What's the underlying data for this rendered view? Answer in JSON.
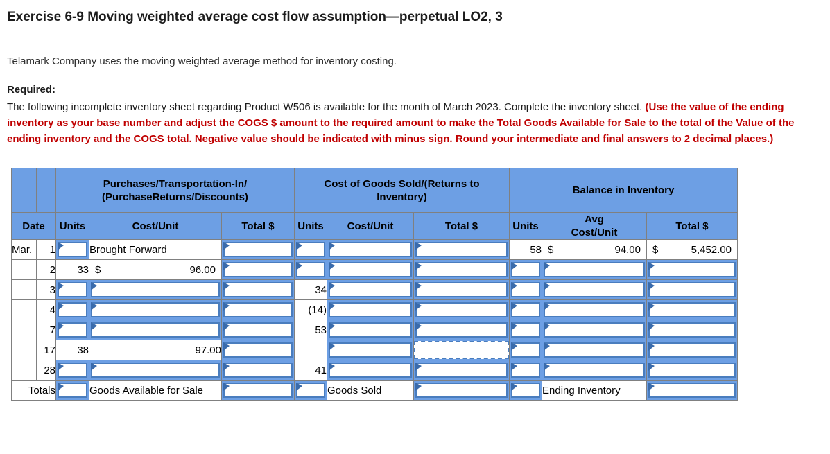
{
  "page": {
    "title": "Exercise 6-9 Moving weighted average cost flow assumption—perpetual LO2, 3",
    "intro": "Telamark Company uses the moving weighted average method for inventory costing.",
    "required_label": "Required:",
    "instructions_plain": "The following incomplete inventory sheet regarding Product W506 is available for the month of March 2023. Complete the inventory sheet. ",
    "instructions_emphasis": "(Use the value of the ending inventory as your base number and adjust the COGS $ amount to the required amount to make the Total Goods Available for Sale to the total of the Value of the ending inventory and the COGS total. Negative value should be indicated with minus sign. Round your intermediate and final answers to 2 decimal places.)"
  },
  "colors": {
    "header_blue": "#6d9fe4",
    "input_border_blue": "#4a7dbe",
    "marker_blue": "#3a6bab",
    "grid_gray": "#808080",
    "emphasis_red": "#c00000"
  },
  "sheet": {
    "currency": "$",
    "groups": [
      {
        "label": ""
      },
      {
        "label": ""
      },
      {
        "label": "Purchases/Transportation-In/\n(PurchaseReturns/Discounts)",
        "span": 3
      },
      {
        "label": "Cost of Goods Sold/(Returns to\nInventory)",
        "span": 3
      },
      {
        "label": "Balance in Inventory",
        "span": 3
      }
    ],
    "columns": [
      {
        "label": "Date",
        "span": 2
      },
      {
        "label": "Units"
      },
      {
        "label": "Cost/Unit"
      },
      {
        "label": "Total $"
      },
      {
        "label": "Units"
      },
      {
        "label": "Cost/Unit"
      },
      {
        "label": "Total $"
      },
      {
        "label": "Units"
      },
      {
        "label": "Avg\nCost/Unit"
      },
      {
        "label": "Total $"
      }
    ],
    "rows": [
      {
        "id": "mar1",
        "cells": [
          {
            "k": "s",
            "v": "Mar.",
            "a": "l"
          },
          {
            "k": "s",
            "v": "1",
            "a": "r"
          },
          {
            "k": "i"
          },
          {
            "k": "s",
            "v": "Brought Forward",
            "a": "l"
          },
          {
            "k": "i"
          },
          {
            "k": "i"
          },
          {
            "k": "i"
          },
          {
            "k": "i"
          },
          {
            "k": "s",
            "v": "58",
            "a": "r"
          },
          {
            "k": "s",
            "money": true,
            "v": "94.00"
          },
          {
            "k": "s",
            "money": true,
            "v": "5,452.00"
          }
        ]
      },
      {
        "id": "mar2",
        "cells": [
          {
            "k": "s"
          },
          {
            "k": "s",
            "v": "2",
            "a": "r"
          },
          {
            "k": "s",
            "v": "33",
            "a": "r"
          },
          {
            "k": "s",
            "money": true,
            "v": "96.00"
          },
          {
            "k": "i"
          },
          {
            "k": "i"
          },
          {
            "k": "i"
          },
          {
            "k": "i"
          },
          {
            "k": "i"
          },
          {
            "k": "i"
          },
          {
            "k": "i"
          }
        ]
      },
      {
        "id": "mar3",
        "cells": [
          {
            "k": "s"
          },
          {
            "k": "s",
            "v": "3",
            "a": "r"
          },
          {
            "k": "i"
          },
          {
            "k": "i"
          },
          {
            "k": "i"
          },
          {
            "k": "s",
            "v": "34",
            "a": "r"
          },
          {
            "k": "i"
          },
          {
            "k": "i"
          },
          {
            "k": "i"
          },
          {
            "k": "i"
          },
          {
            "k": "i"
          }
        ]
      },
      {
        "id": "mar4",
        "cells": [
          {
            "k": "s"
          },
          {
            "k": "s",
            "v": "4",
            "a": "r"
          },
          {
            "k": "i"
          },
          {
            "k": "i"
          },
          {
            "k": "i"
          },
          {
            "k": "s",
            "v": "(14)",
            "a": "r"
          },
          {
            "k": "i"
          },
          {
            "k": "i"
          },
          {
            "k": "i"
          },
          {
            "k": "i"
          },
          {
            "k": "i"
          }
        ]
      },
      {
        "id": "mar7",
        "cells": [
          {
            "k": "s"
          },
          {
            "k": "s",
            "v": "7",
            "a": "r"
          },
          {
            "k": "i"
          },
          {
            "k": "i"
          },
          {
            "k": "i"
          },
          {
            "k": "s",
            "v": "53",
            "a": "r"
          },
          {
            "k": "i"
          },
          {
            "k": "i"
          },
          {
            "k": "i"
          },
          {
            "k": "i"
          },
          {
            "k": "i"
          }
        ]
      },
      {
        "id": "mar17",
        "cells": [
          {
            "k": "s"
          },
          {
            "k": "s",
            "v": "17",
            "a": "r"
          },
          {
            "k": "s",
            "v": "38",
            "a": "r"
          },
          {
            "k": "s",
            "v": "97.00",
            "a": "r"
          },
          {
            "k": "i"
          },
          {
            "k": "s"
          },
          {
            "k": "i"
          },
          {
            "k": "sel"
          },
          {
            "k": "i"
          },
          {
            "k": "i"
          },
          {
            "k": "i"
          }
        ]
      },
      {
        "id": "mar28",
        "cells": [
          {
            "k": "s"
          },
          {
            "k": "s",
            "v": "28",
            "a": "r"
          },
          {
            "k": "i"
          },
          {
            "k": "i"
          },
          {
            "k": "i"
          },
          {
            "k": "s",
            "v": "41",
            "a": "r"
          },
          {
            "k": "i"
          },
          {
            "k": "i"
          },
          {
            "k": "i"
          },
          {
            "k": "i"
          },
          {
            "k": "i"
          }
        ]
      },
      {
        "id": "totals",
        "cells": [
          {
            "k": "s",
            "v": "Totals",
            "a": "r",
            "span": 2
          },
          {
            "k": "i"
          },
          {
            "k": "s",
            "v": "Goods Available for Sale",
            "a": "l"
          },
          {
            "k": "i"
          },
          {
            "k": "i"
          },
          {
            "k": "s",
            "v": "Goods Sold",
            "a": "l"
          },
          {
            "k": "i"
          },
          {
            "k": "i"
          },
          {
            "k": "s",
            "v": "Ending Inventory",
            "a": "l"
          },
          {
            "k": "i"
          }
        ]
      }
    ]
  }
}
